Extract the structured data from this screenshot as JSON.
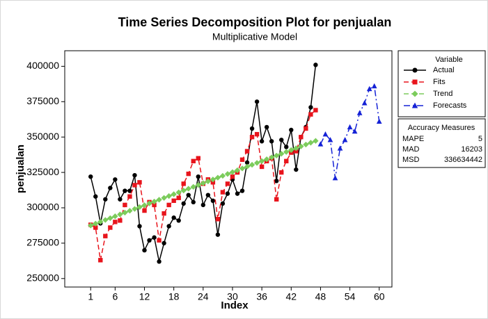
{
  "chart_data": {
    "type": "line",
    "title": "Time Series Decomposition Plot for penjualan",
    "subtitle": "Multiplicative Model",
    "x_label": "Index",
    "y_label": "penjualan",
    "xlim": [
      -4.3,
      62.6
    ],
    "ylim": [
      244000,
      411000
    ],
    "xticks": [
      1,
      6,
      12,
      18,
      24,
      30,
      36,
      42,
      48,
      54,
      60
    ],
    "yticks": [
      250000,
      275000,
      300000,
      325000,
      350000,
      375000,
      400000
    ],
    "grid": false,
    "legend_title": "Variable",
    "x": [
      1,
      2,
      3,
      4,
      5,
      6,
      7,
      8,
      9,
      10,
      11,
      12,
      13,
      14,
      15,
      16,
      17,
      18,
      19,
      20,
      21,
      22,
      23,
      24,
      25,
      26,
      27,
      28,
      29,
      30,
      31,
      32,
      33,
      34,
      35,
      36,
      37,
      38,
      39,
      40,
      41,
      42,
      43,
      44,
      45,
      46,
      47,
      48,
      49,
      50,
      51,
      52,
      53,
      54,
      55,
      56,
      57,
      58,
      59,
      60
    ],
    "series": [
      {
        "name": "Actual",
        "color": "#000000",
        "marker": "circle",
        "linestyle": "solid",
        "values": [
          322000,
          308000,
          289000,
          306000,
          314000,
          320000,
          306000,
          312000,
          312000,
          323000,
          287000,
          270000,
          277000,
          279000,
          262000,
          275000,
          287000,
          293000,
          291000,
          303000,
          309000,
          304000,
          322000,
          302000,
          309000,
          305000,
          281000,
          303000,
          310000,
          320000,
          310000,
          312000,
          332000,
          356000,
          375000,
          347000,
          357000,
          347000,
          319000,
          348000,
          343000,
          355000,
          327000,
          350000,
          357000,
          371000,
          401000,
          null,
          null,
          null,
          null,
          null,
          null,
          null,
          null,
          null,
          null,
          null,
          null,
          null
        ]
      },
      {
        "name": "Fits",
        "color": "#e8141c",
        "marker": "square",
        "linestyle": "dashed",
        "values": [
          288000,
          286000,
          263000,
          280000,
          286000,
          290000,
          291000,
          302000,
          308000,
          316000,
          318000,
          298000,
          304000,
          302000,
          277000,
          296000,
          302000,
          305000,
          307000,
          317000,
          324000,
          333000,
          335000,
          317000,
          320000,
          318000,
          292000,
          311000,
          317000,
          322000,
          325000,
          334000,
          340000,
          350000,
          352000,
          329000,
          333000,
          335000,
          306000,
          325000,
          333000,
          339000,
          340000,
          350000,
          356000,
          366000,
          369000,
          null,
          null,
          null,
          null,
          null,
          null,
          null,
          null,
          null,
          null,
          null,
          null,
          null
        ]
      },
      {
        "name": "Trend",
        "color": "#7ccc5c",
        "marker": "diamond",
        "linestyle": "dashed",
        "values": [
          287500,
          288800,
          290100,
          291400,
          292700,
          294000,
          295300,
          296600,
          297900,
          299200,
          300500,
          301800,
          303100,
          304400,
          305700,
          307000,
          308300,
          309600,
          310900,
          312200,
          313500,
          314800,
          316100,
          317400,
          318700,
          320000,
          321300,
          322600,
          323900,
          325200,
          326500,
          327800,
          329100,
          330400,
          331700,
          333000,
          334300,
          335600,
          336900,
          338200,
          339500,
          340800,
          342100,
          343400,
          344700,
          346000,
          347300,
          null,
          null,
          null,
          null,
          null,
          null,
          null,
          null,
          null,
          null,
          null,
          null,
          null
        ]
      },
      {
        "name": "Forecasts",
        "color": "#1522d6",
        "marker": "triangle",
        "linestyle": "dashdot",
        "values": [
          null,
          null,
          null,
          null,
          null,
          null,
          null,
          null,
          null,
          null,
          null,
          null,
          null,
          null,
          null,
          null,
          null,
          null,
          null,
          null,
          null,
          null,
          null,
          null,
          null,
          null,
          null,
          null,
          null,
          null,
          null,
          null,
          null,
          null,
          null,
          null,
          null,
          null,
          null,
          null,
          null,
          null,
          null,
          null,
          null,
          null,
          null,
          345000,
          352000,
          348000,
          321000,
          342000,
          348000,
          357000,
          354000,
          367000,
          374000,
          384000,
          386000,
          361000
        ]
      }
    ],
    "accuracy": {
      "title": "Accuracy Measures",
      "rows": [
        [
          "MAPE",
          "5"
        ],
        [
          "MAD",
          "16203"
        ],
        [
          "MSD",
          "336634442"
        ]
      ]
    }
  }
}
